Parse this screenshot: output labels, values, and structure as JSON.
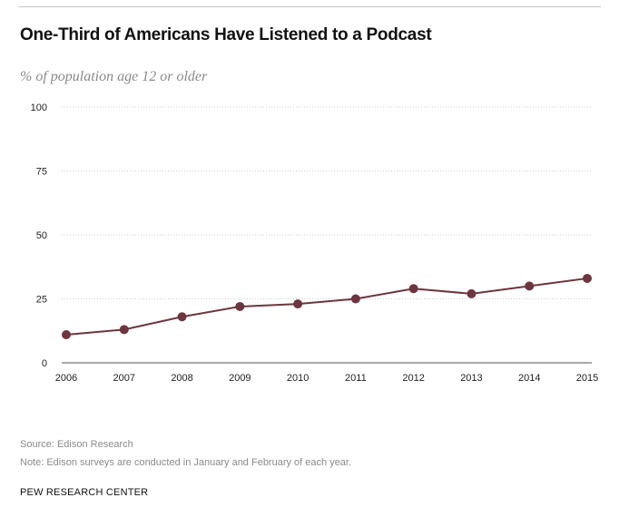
{
  "chart_data": {
    "type": "line",
    "title": "One-Third of Americans Have Listened to a Podcast",
    "subtitle": "% of population age 12 or older",
    "x": [
      "2006",
      "2007",
      "2008",
      "2009",
      "2010",
      "2011",
      "2012",
      "2013",
      "2014",
      "2015"
    ],
    "series": [
      {
        "values": [
          11,
          13,
          18,
          22,
          23,
          25,
          29,
          27,
          30,
          33
        ]
      }
    ],
    "ylim": [
      0,
      100
    ],
    "yticks": [
      "0",
      "25",
      "50",
      "75",
      "100"
    ],
    "grid": true,
    "line_color": "#6d3540"
  },
  "footer": {
    "source": "Source: Edison Research",
    "note": "Note: Edison surveys are conducted in January and February of each year.",
    "brand": "PEW RESEARCH CENTER"
  }
}
